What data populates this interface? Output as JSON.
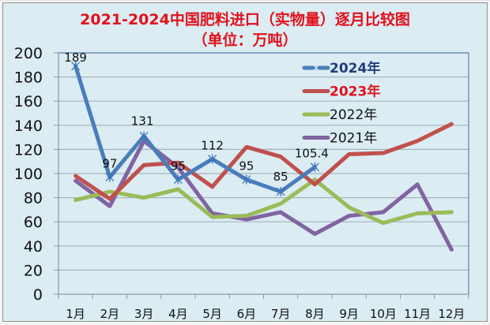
{
  "chart_data": {
    "type": "line",
    "title": "2021-2024中国肥料进口（实物量）逐月比较图",
    "subtitle": "（单位：万吨）",
    "xlabel": "",
    "ylabel": "",
    "ylim": [
      0,
      200
    ],
    "yticks": [
      0,
      20,
      40,
      60,
      80,
      100,
      120,
      140,
      160,
      180,
      200
    ],
    "grid": true,
    "legend_position": "upper-right-inside",
    "categories": [
      "1月",
      "2月",
      "3月",
      "4月",
      "5月",
      "6月",
      "7月",
      "8月",
      "9月",
      "10月",
      "11月",
      "12月"
    ],
    "series": [
      {
        "name": "2024年",
        "color": "#4a7ebb",
        "marker": "asterisk",
        "bold_label": true,
        "label_color": "#1f3d7a",
        "values": [
          189,
          97,
          131,
          95,
          112,
          95,
          85,
          105.4,
          null,
          null,
          null,
          null
        ],
        "data_labels": [
          "189",
          "97",
          "131",
          "95",
          "112",
          "95",
          "85",
          "105.4"
        ]
      },
      {
        "name": "2023年",
        "color": "#c0504d",
        "marker": "none",
        "bold_label": true,
        "label_color": "#e2111b",
        "values": [
          98,
          79,
          107,
          109,
          89,
          122,
          114,
          91,
          116,
          117,
          127,
          141
        ]
      },
      {
        "name": "2022年",
        "color": "#9bbb59",
        "marker": "none",
        "bold_label": false,
        "label_color": "#111111",
        "values": [
          78,
          85,
          80,
          87,
          64,
          65,
          75,
          95,
          72,
          59,
          67,
          68
        ]
      },
      {
        "name": "2021年",
        "color": "#8064a2",
        "marker": "none",
        "bold_label": false,
        "label_color": "#111111",
        "values": [
          94,
          73,
          127,
          105,
          67,
          62,
          68,
          50,
          65,
          68,
          91,
          37
        ]
      }
    ]
  },
  "colors": {
    "background": "#dbecf3",
    "title": "#e2111b",
    "gridline": "#a6b4bc",
    "axis": "#8a9aa3"
  }
}
